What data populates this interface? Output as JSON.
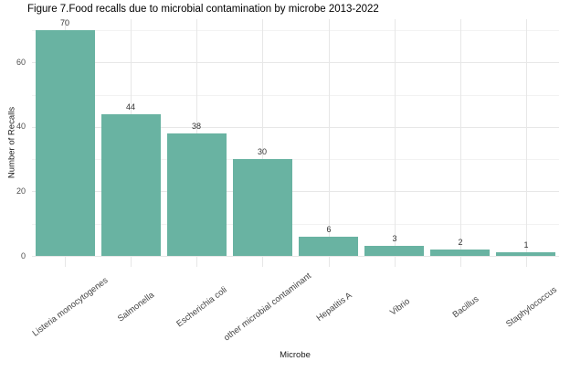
{
  "chart_data": {
    "type": "bar",
    "title": "Figure 7.Food recalls due to microbial contamination by microbe 2013-2022",
    "xlabel": "Microbe",
    "ylabel": "Number of Recalls",
    "categories": [
      "Listeria monocytogenes",
      "Salmonella",
      "Escherichia coli",
      "other microbial contaminant",
      "Hepatitis A",
      "Vibrio",
      "Bacillus",
      "Staphylococcus"
    ],
    "values": [
      70,
      44,
      38,
      30,
      6,
      3,
      2,
      1
    ],
    "bar_labels": [
      "70",
      "44",
      "38",
      "30",
      "6",
      "3",
      "2",
      "1"
    ],
    "y_ticks": [
      0,
      20,
      40,
      60
    ],
    "y_minor_ticks": [
      10,
      30,
      50,
      70
    ],
    "ylim": [
      0,
      73.5
    ],
    "grid": true,
    "legend": false
  },
  "colors": {
    "bar": "#69b3a2",
    "grid_major": "#e7e7e7",
    "grid_minor": "#f2f2f2",
    "tick_label": "#4d4d4d",
    "value_label": "#333333",
    "text": "#1a1a1a",
    "background": "#ffffff"
  }
}
